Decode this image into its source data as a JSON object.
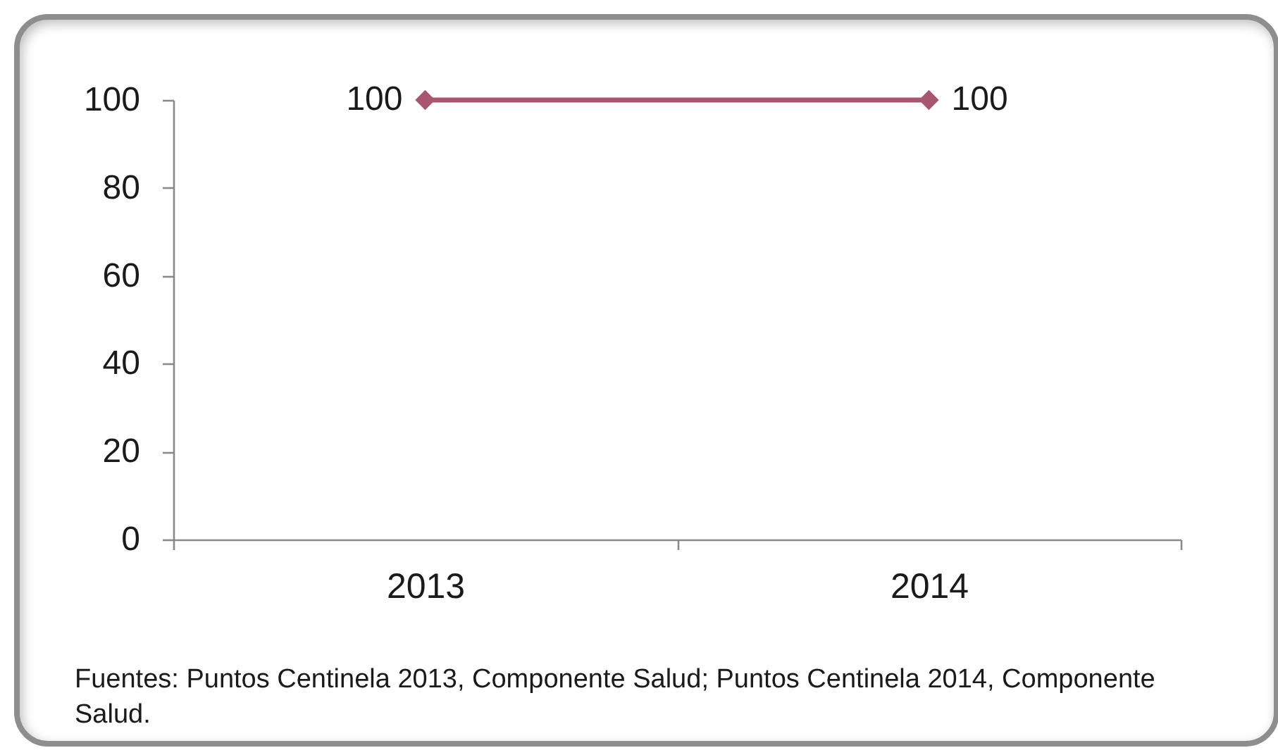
{
  "chart_data": {
    "type": "line",
    "categories": [
      "2013",
      "2014"
    ],
    "series": [
      {
        "color": "#a8566f",
        "values": [
          100,
          100
        ]
      }
    ],
    "ylim": [
      0,
      100
    ],
    "yticks": [
      0,
      20,
      40,
      60,
      80,
      100
    ],
    "grid": false,
    "marker": "diamond",
    "line_style": "solid",
    "data_labels": true,
    "annotations": [
      "Fuentes: Puntos Centinela 2013, Componente Salud; Puntos Centinela 2014, Componente Salud."
    ]
  }
}
